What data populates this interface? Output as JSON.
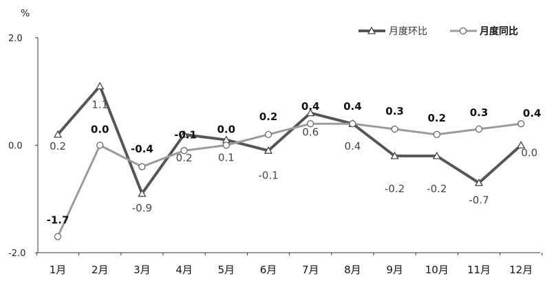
{
  "chart_data": {
    "type": "line",
    "ylabel": "%",
    "ylim": [
      -2.0,
      2.0
    ],
    "yticks": [
      2.0,
      0.0,
      -2.0
    ],
    "ytick_labels": [
      "2.0",
      "0.0",
      "-2.0"
    ],
    "categories": [
      "1月",
      "2月",
      "3月",
      "4月",
      "5月",
      "6月",
      "7月",
      "8月",
      "9月",
      "10月",
      "11月",
      "12月"
    ],
    "legend_position": "top-right",
    "grid": false,
    "series": [
      {
        "name": "月度环比",
        "marker": "triangle",
        "color": "#555555",
        "values": [
          0.2,
          1.1,
          -0.9,
          0.2,
          0.1,
          -0.1,
          0.6,
          0.4,
          -0.2,
          -0.2,
          -0.7,
          0.0
        ],
        "labels": [
          "0.2",
          "1.1",
          "-0.9",
          "0.2",
          "0.1",
          "-0.1",
          "0.6",
          "0.4",
          "-0.2",
          "-0.2",
          "-0.7",
          "0.0"
        ]
      },
      {
        "name": "月度同比",
        "marker": "circle",
        "color": "#9a9a9a",
        "values": [
          -1.7,
          0.0,
          -0.4,
          -0.1,
          0.0,
          0.2,
          0.4,
          0.4,
          0.3,
          0.2,
          0.3,
          0.4
        ],
        "labels": [
          "-1.7",
          "0.0",
          "-0.4",
          "-0.1",
          "0.0",
          "0.2",
          "0.4",
          "0.4",
          "0.3",
          "0.2",
          "0.3",
          "0.4"
        ]
      }
    ]
  }
}
